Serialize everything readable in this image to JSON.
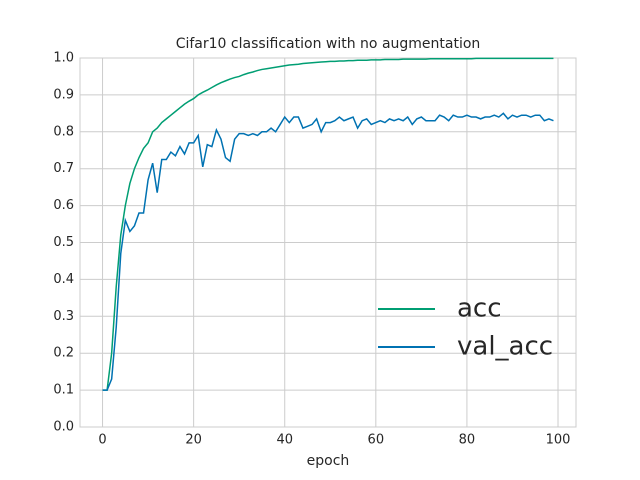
{
  "chart_data": {
    "type": "line",
    "title": "Cifar10 classification with no augmentation",
    "xlabel": "epoch",
    "x": [
      0,
      1,
      2,
      3,
      4,
      5,
      6,
      7,
      8,
      9,
      10,
      11,
      12,
      13,
      14,
      15,
      16,
      17,
      18,
      19,
      20,
      21,
      22,
      23,
      24,
      25,
      26,
      27,
      28,
      29,
      30,
      31,
      32,
      33,
      34,
      35,
      36,
      37,
      38,
      39,
      40,
      41,
      42,
      43,
      44,
      45,
      46,
      47,
      48,
      49,
      50,
      51,
      52,
      53,
      54,
      55,
      56,
      57,
      58,
      59,
      60,
      61,
      62,
      63,
      64,
      65,
      66,
      67,
      68,
      69,
      70,
      71,
      72,
      73,
      74,
      75,
      76,
      77,
      78,
      79,
      80,
      81,
      82,
      83,
      84,
      85,
      86,
      87,
      88,
      89,
      90,
      91,
      92,
      93,
      94,
      95,
      96,
      97,
      98,
      99
    ],
    "series": [
      {
        "name": "acc",
        "color": "#009e73",
        "values": [
          0.1,
          0.1,
          0.2,
          0.38,
          0.52,
          0.6,
          0.66,
          0.7,
          0.73,
          0.755,
          0.77,
          0.8,
          0.81,
          0.825,
          0.835,
          0.845,
          0.855,
          0.865,
          0.875,
          0.883,
          0.89,
          0.9,
          0.907,
          0.913,
          0.92,
          0.927,
          0.933,
          0.938,
          0.943,
          0.947,
          0.95,
          0.955,
          0.959,
          0.962,
          0.966,
          0.969,
          0.971,
          0.973,
          0.975,
          0.977,
          0.979,
          0.981,
          0.982,
          0.983,
          0.985,
          0.986,
          0.987,
          0.988,
          0.989,
          0.99,
          0.991,
          0.991,
          0.992,
          0.992,
          0.993,
          0.993,
          0.994,
          0.994,
          0.994,
          0.995,
          0.995,
          0.995,
          0.996,
          0.996,
          0.996,
          0.996,
          0.997,
          0.997,
          0.997,
          0.997,
          0.997,
          0.997,
          0.998,
          0.998,
          0.998,
          0.998,
          0.998,
          0.998,
          0.998,
          0.998,
          0.998,
          0.998,
          0.999,
          0.999,
          0.999,
          0.999,
          0.999,
          0.999,
          0.999,
          0.999,
          0.999,
          0.999,
          0.999,
          0.999,
          0.999,
          0.999,
          0.999,
          0.999,
          0.999,
          0.999
        ]
      },
      {
        "name": "val_acc",
        "color": "#0072b2",
        "values": [
          0.1,
          0.1,
          0.13,
          0.27,
          0.47,
          0.56,
          0.53,
          0.545,
          0.58,
          0.58,
          0.67,
          0.715,
          0.635,
          0.725,
          0.725,
          0.745,
          0.735,
          0.76,
          0.74,
          0.77,
          0.77,
          0.79,
          0.705,
          0.765,
          0.76,
          0.805,
          0.78,
          0.73,
          0.72,
          0.78,
          0.795,
          0.795,
          0.79,
          0.795,
          0.79,
          0.8,
          0.8,
          0.81,
          0.8,
          0.82,
          0.84,
          0.825,
          0.84,
          0.84,
          0.81,
          0.815,
          0.82,
          0.835,
          0.8,
          0.825,
          0.825,
          0.83,
          0.84,
          0.83,
          0.835,
          0.84,
          0.81,
          0.83,
          0.835,
          0.82,
          0.825,
          0.83,
          0.825,
          0.835,
          0.83,
          0.835,
          0.83,
          0.84,
          0.82,
          0.835,
          0.84,
          0.83,
          0.83,
          0.83,
          0.845,
          0.84,
          0.83,
          0.845,
          0.84,
          0.84,
          0.845,
          0.84,
          0.84,
          0.835,
          0.84,
          0.84,
          0.845,
          0.84,
          0.85,
          0.835,
          0.845,
          0.84,
          0.845,
          0.845,
          0.84,
          0.845,
          0.845,
          0.83,
          0.835,
          0.83
        ]
      }
    ],
    "xlim": [
      -4.95,
      103.95
    ],
    "xticks": [
      0,
      20,
      40,
      60,
      80,
      100
    ],
    "ylim": [
      0,
      1
    ],
    "yticks": [
      {
        "value": 0,
        "label": "0.0"
      },
      0.1,
      0.2,
      0.3,
      0.4,
      0.5,
      0.6,
      0.7,
      0.8,
      0.9,
      {
        "value": 1,
        "label": "1.0"
      }
    ],
    "grid": true,
    "legend": "lower right"
  }
}
